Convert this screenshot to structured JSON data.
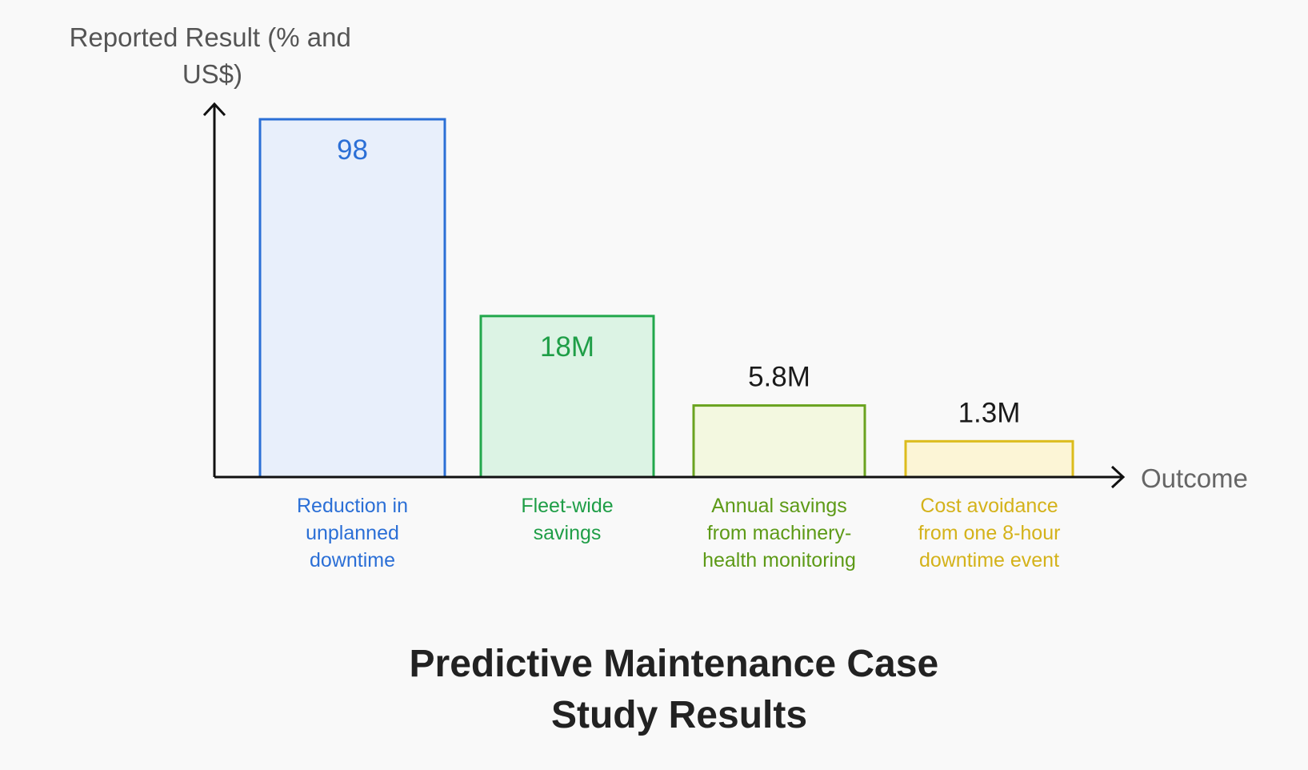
{
  "chart_data": {
    "type": "bar",
    "title": "Predictive Maintenance Case Study Results",
    "title_lines": [
      "Predictive Maintenance Case",
      "Study Results"
    ],
    "ylabel": "Reported Result (% and US$)",
    "ylabel_lines": [
      "Reported Result (% and",
      "US$)"
    ],
    "xlabel": "Outcome",
    "axis_tick_labels": false,
    "grid": false,
    "legend": "none",
    "categories": [
      "Reduction in unplanned downtime",
      "Fleet-wide savings",
      "Annual savings from machinery-health monitoring",
      "Cost avoidance from one 8-hour downtime event"
    ],
    "category_lines": [
      [
        "Reduction in",
        "unplanned",
        "downtime"
      ],
      [
        "Fleet-wide",
        "savings"
      ],
      [
        "Annual savings",
        "from machinery-",
        "health monitoring"
      ],
      [
        "Cost avoidance",
        "from one 8-hour",
        "downtime event"
      ]
    ],
    "values": [
      98,
      18,
      5.8,
      1.3
    ],
    "value_labels": [
      "98",
      "18M",
      "5.8M",
      "1.3M"
    ],
    "value_label_position": [
      "inside",
      "inside",
      "above",
      "above"
    ],
    "relative_bar_heights": [
      1.0,
      0.45,
      0.2,
      0.1
    ],
    "colors": {
      "stroke": [
        "#2b6fd6",
        "#22a84c",
        "#6aa31f",
        "#dcbc1c"
      ],
      "fill": [
        "#e8effb",
        "#dcf3e4",
        "#f3f8e0",
        "#fcf5d6"
      ],
      "label": [
        "#2b6fd6",
        "#1f9e47",
        "#5d9a17",
        "#d4b21a"
      ],
      "value_text": [
        "#2b6fd6",
        "#1f9e47",
        "#1a1a1a",
        "#1a1a1a"
      ],
      "axis": "#111111"
    }
  }
}
